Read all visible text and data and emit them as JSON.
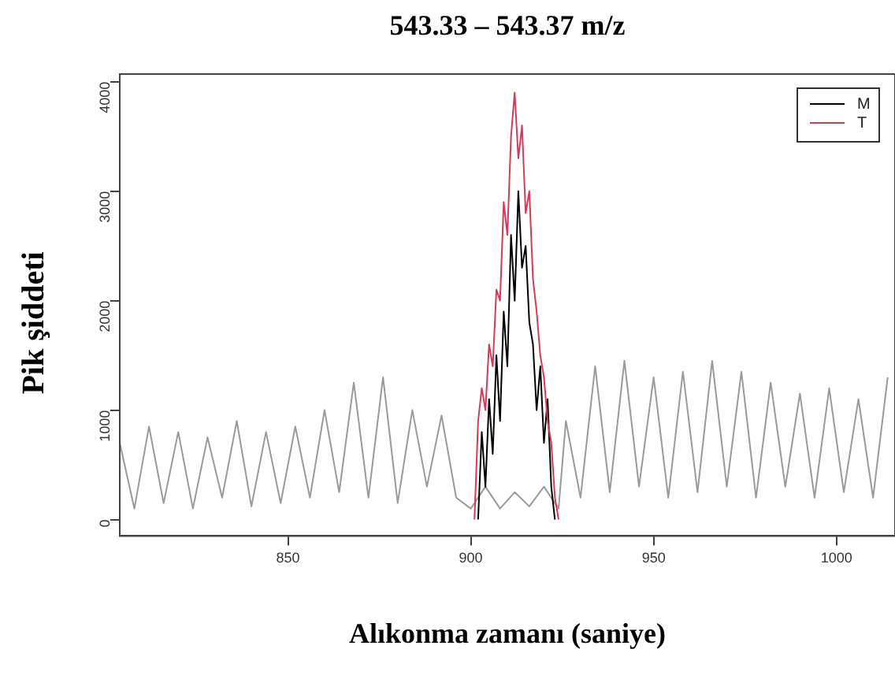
{
  "chart_data": {
    "type": "line",
    "title": "543.33 – 543.37 m/z",
    "xlabel": "Alıkonma zamanı (saniye)",
    "ylabel": "Pik şiddeti",
    "xlim": [
      804,
      1016
    ],
    "xticks": [
      850,
      900,
      950,
      1000
    ],
    "ylim": [
      -150,
      4070
    ],
    "yticks": [
      0,
      1000,
      2000,
      3000,
      {
        "value": 4000,
        "label": "4000"
      }
    ],
    "grid": false,
    "legend": "top right",
    "marker": "none",
    "line_style": "solid",
    "series": [
      {
        "color": "#9a9a9a",
        "x": [
          804,
          808,
          812,
          816,
          820,
          824,
          828,
          832,
          836,
          840,
          844,
          848,
          852,
          856,
          860,
          864,
          868,
          872,
          876,
          880,
          884,
          888,
          892,
          896,
          900,
          904,
          908,
          912,
          916,
          920,
          924,
          926,
          930,
          934,
          938,
          942,
          946,
          950,
          954,
          958,
          962,
          966,
          970,
          974,
          978,
          982,
          986,
          990,
          994,
          998,
          1002,
          1006,
          1010,
          1014
        ],
        "values": [
          700,
          100,
          850,
          150,
          800,
          100,
          750,
          200,
          900,
          120,
          800,
          150,
          850,
          200,
          1000,
          250,
          1250,
          200,
          1300,
          150,
          1000,
          300,
          950,
          200,
          100,
          300,
          100,
          250,
          120,
          300,
          100,
          900,
          200,
          1400,
          250,
          1450,
          300,
          1300,
          200,
          1350,
          250,
          1450,
          300,
          1350,
          200,
          1250,
          300,
          1150,
          200,
          1200,
          250,
          1100,
          200,
          1300
        ]
      },
      {
        "name": "M",
        "color": "#000000",
        "x": [
          902,
          903,
          904,
          905,
          906,
          907,
          908,
          909,
          910,
          911,
          912,
          913,
          914,
          915,
          916,
          917,
          918,
          919,
          920,
          921,
          922,
          923
        ],
        "values": [
          0,
          800,
          300,
          1100,
          600,
          1500,
          900,
          1900,
          1400,
          2600,
          2000,
          3000,
          2300,
          2500,
          1800,
          1600,
          1000,
          1400,
          700,
          1100,
          300,
          0
        ]
      },
      {
        "name": "T",
        "color": "#d43a5a",
        "x": [
          901,
          902,
          903,
          904,
          905,
          906,
          907,
          908,
          909,
          910,
          911,
          912,
          913,
          914,
          915,
          916,
          917,
          918,
          919,
          920,
          921,
          922,
          923,
          924
        ],
        "values": [
          0,
          900,
          1200,
          1000,
          1600,
          1400,
          2100,
          2000,
          2900,
          2600,
          3500,
          3900,
          3300,
          3600,
          2800,
          3000,
          2200,
          1900,
          1500,
          1300,
          900,
          700,
          200,
          0
        ]
      }
    ]
  }
}
